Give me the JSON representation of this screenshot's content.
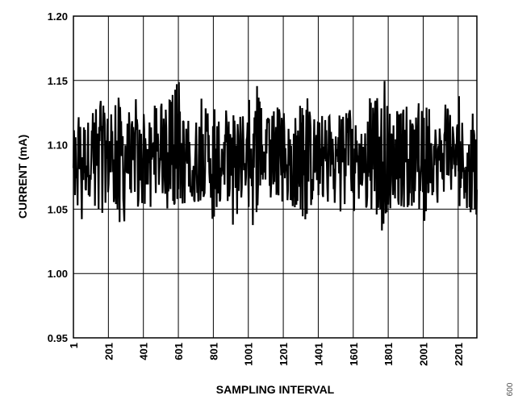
{
  "chart_data": {
    "type": "line",
    "title": "",
    "xlabel": "SAMPLING INTERVAL",
    "ylabel": "CURRENT (mA)",
    "xlim": [
      1,
      2308
    ],
    "ylim": [
      0.95,
      1.2
    ],
    "x_ticks": [
      1,
      201,
      401,
      601,
      801,
      1001,
      1201,
      1401,
      1601,
      1801,
      2001,
      2201
    ],
    "x_tick_labels": [
      "1",
      "201",
      "401",
      "601",
      "801",
      "1001",
      "1201",
      "1401",
      "1601",
      "1801",
      "2001",
      "2201"
    ],
    "y_ticks": [
      0.95,
      1.0,
      1.05,
      1.1,
      1.15,
      1.2
    ],
    "y_tick_labels": [
      "0.95",
      "1.00",
      "1.05",
      "1.10",
      "1.15",
      "1.20"
    ],
    "grid": true,
    "legend": "none",
    "series": [
      {
        "color": "#000000",
        "x": [
          1,
          40,
          80,
          120,
          160,
          200,
          240,
          280,
          320,
          360,
          400,
          440,
          480,
          520,
          560,
          600,
          640,
          680,
          720,
          760,
          800,
          840,
          880,
          920,
          960,
          1000,
          1040,
          1080,
          1120,
          1160,
          1200,
          1240,
          1280,
          1320,
          1360,
          1400,
          1440,
          1480,
          1520,
          1560,
          1600,
          1640,
          1680,
          1720,
          1760,
          1800,
          1840,
          1880,
          1920,
          1960,
          2000,
          2040,
          2080,
          2120,
          2160,
          2200,
          2240,
          2280,
          2308
        ],
        "max": [
          1.115,
          1.127,
          1.12,
          1.13,
          1.136,
          1.124,
          1.131,
          1.154,
          1.127,
          1.14,
          1.126,
          1.123,
          1.136,
          1.131,
          1.137,
          1.15,
          1.151,
          1.122,
          1.143,
          1.128,
          1.133,
          1.126,
          1.129,
          1.131,
          1.124,
          1.132,
          1.157,
          1.126,
          1.122,
          1.131,
          1.124,
          1.131,
          1.143,
          1.124,
          1.15,
          1.122,
          1.123,
          1.127,
          1.125,
          1.125,
          1.13,
          1.12,
          1.143,
          1.13,
          1.152,
          1.158,
          1.125,
          1.13,
          1.131,
          1.14,
          1.128,
          1.132,
          1.124,
          1.135,
          1.125,
          1.139,
          1.132,
          1.125,
          1.12
        ],
        "min": [
          1.06,
          1.041,
          1.038,
          1.05,
          1.045,
          1.027,
          1.056,
          1.028,
          1.06,
          1.05,
          1.055,
          1.05,
          1.062,
          1.046,
          1.055,
          1.045,
          1.052,
          1.06,
          1.041,
          1.058,
          1.037,
          1.056,
          1.054,
          1.032,
          1.056,
          1.053,
          1.03,
          1.056,
          1.057,
          1.048,
          1.055,
          1.054,
          1.049,
          1.042,
          1.04,
          1.055,
          1.056,
          1.05,
          1.048,
          1.049,
          1.045,
          1.06,
          1.047,
          1.049,
          1.03,
          1.045,
          1.055,
          1.052,
          1.05,
          1.056,
          1.037,
          1.052,
          1.05,
          1.061,
          1.048,
          1.052,
          1.046,
          1.047,
          1.045
        ],
        "mean": 1.09
      }
    ]
  },
  "figure_code": "009"
}
